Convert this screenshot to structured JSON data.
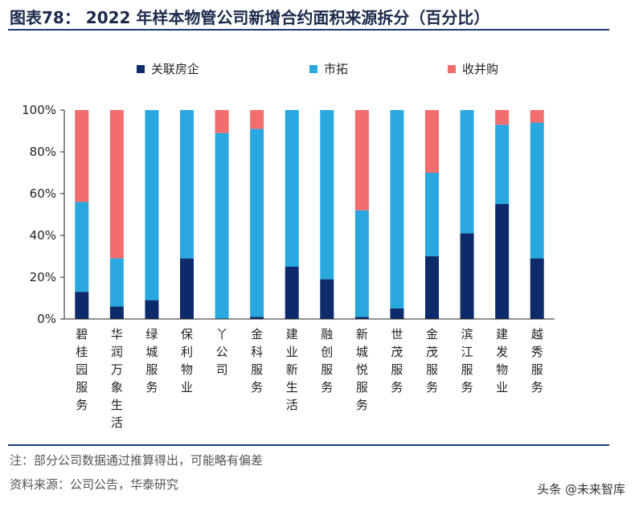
{
  "title": "图表78：  2022 年样本物管公司新增合约面积来源拆分（百分比）",
  "notes": {
    "note": "注：部分公司数据通过推算得出，可能略有偏差",
    "source": "资料来源：公司公告，华泰研究"
  },
  "watermark": "头条 @未来智库",
  "chart_data": {
    "type": "bar",
    "stacked": true,
    "categories": [
      "碧桂园服务",
      "华润万象生活",
      "绿城服务",
      "保利物业",
      "丫公司",
      "金科服务",
      "建业新生活",
      "融创服务",
      "新城悦服务",
      "世茂服务",
      "金茂服务",
      "滨江服务",
      "建发物业",
      "越秀服务"
    ],
    "series": [
      {
        "name": "关联房企",
        "color": "#0d2b6b",
        "values": [
          13,
          6,
          9,
          29,
          0,
          1,
          25,
          19,
          1,
          5,
          30,
          41,
          55,
          29
        ]
      },
      {
        "name": "市拓",
        "color": "#29a8e0",
        "values": [
          43,
          23,
          91,
          71,
          89,
          90,
          75,
          81,
          51,
          95,
          40,
          59,
          38,
          65
        ]
      },
      {
        "name": "收并购",
        "color": "#f26e6e",
        "values": [
          44,
          71,
          0,
          0,
          11,
          9,
          0,
          0,
          48,
          0,
          30,
          0,
          7,
          6
        ]
      }
    ],
    "yticks": [
      "0%",
      "20%",
      "40%",
      "60%",
      "80%",
      "100%"
    ],
    "ylim": [
      0,
      100
    ],
    "legend_position": "top",
    "grid": false
  }
}
